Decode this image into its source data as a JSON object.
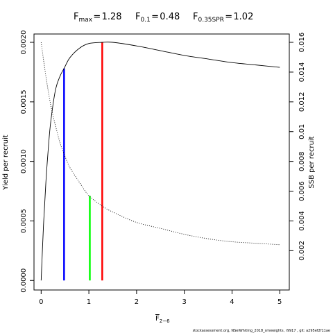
{
  "title": {
    "fmax": {
      "symbol": "F",
      "sub": "max",
      "value": "1.28"
    },
    "f01": {
      "symbol": "F",
      "sub": "0.1",
      "value": "0.48"
    },
    "f035": {
      "symbol": "F",
      "sub": "0.35SPR",
      "value": "1.02"
    }
  },
  "footer": "stockassessment.org, NSeiWhiting_2018_smweights, r9917 , git: a295ef2f11ae",
  "chart_data": {
    "type": "line",
    "xlabel": {
      "symbol": "F",
      "sub": "2−6"
    },
    "ylabel_left": "Yield per recruit",
    "ylabel_right": "SSB per recruit",
    "xlim": [
      -0.15,
      5.2
    ],
    "ylim_left": [
      -8e-05,
      0.00207
    ],
    "ylim_right": [
      -0.00064,
      0.01656
    ],
    "x_ticks": [
      "0",
      "1",
      "2",
      "3",
      "4",
      "5"
    ],
    "y_left_ticks": [
      "0.0000",
      "0.0005",
      "0.0010",
      "0.0015",
      "0.0020"
    ],
    "y_right_ticks": [
      "0.002",
      "0.004",
      "0.006",
      "0.008",
      "0.01",
      "0.012",
      "0.014",
      "0.016"
    ],
    "grid": false,
    "series": [
      {
        "axis": "left",
        "style": "solid",
        "color": "#000000",
        "x": [
          0,
          0.05,
          0.1,
          0.15,
          0.2,
          0.3,
          0.4,
          0.48,
          0.6,
          0.8,
          1.0,
          1.28,
          1.5,
          2.0,
          2.5,
          3.0,
          3.5,
          4.0,
          4.5,
          5.0
        ],
        "y": [
          0.0,
          0.00047,
          0.00083,
          0.00111,
          0.00133,
          0.0016,
          0.00172,
          0.00178,
          0.00187,
          0.00195,
          0.00199,
          0.002,
          0.002,
          0.00197,
          0.00193,
          0.00189,
          0.00186,
          0.00183,
          0.00181,
          0.00179
        ]
      },
      {
        "axis": "right",
        "style": "dotted",
        "color": "#000000",
        "x": [
          0,
          0.1,
          0.2,
          0.3,
          0.4,
          0.48,
          0.6,
          0.8,
          1.0,
          1.28,
          1.5,
          2.0,
          2.5,
          3.0,
          3.5,
          4.0,
          4.5,
          5.0
        ],
        "y": [
          0.016,
          0.0137,
          0.0118,
          0.0104,
          0.0092,
          0.0085,
          0.0076,
          0.0066,
          0.0057,
          0.005,
          0.0046,
          0.0039,
          0.0035,
          0.0031,
          0.0028,
          0.0026,
          0.0025,
          0.0024
        ]
      }
    ],
    "reference_lines": [
      {
        "name": "F0.1",
        "x": 0.48,
        "y": 0.00178,
        "color": "#0000ff"
      },
      {
        "name": "F0.35SPR",
        "x": 1.02,
        "y": 0.00071,
        "color": "#00ff00"
      },
      {
        "name": "Fmax",
        "x": 1.28,
        "y": 0.002,
        "color": "#ff0000"
      }
    ]
  }
}
